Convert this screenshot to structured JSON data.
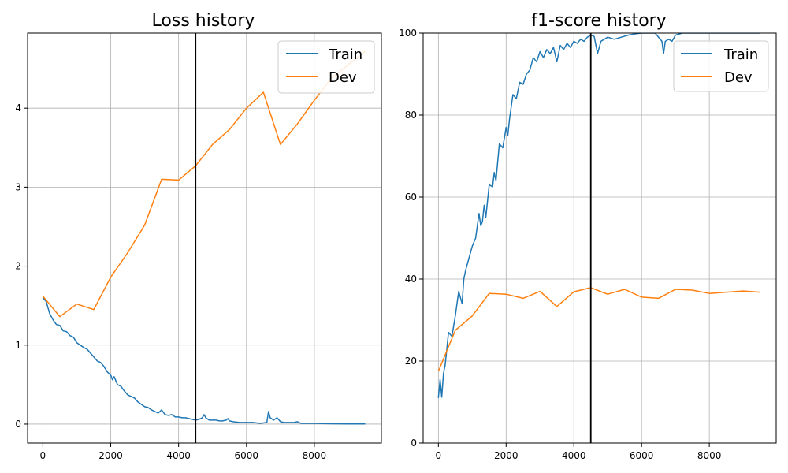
{
  "chart_data": [
    {
      "type": "line",
      "title": "Loss history",
      "xlabel": "",
      "ylabel": "",
      "xlim": [
        -450,
        9975
      ],
      "ylim": [
        -0.24,
        4.95
      ],
      "xticks": [
        0,
        2000,
        4000,
        6000,
        8000
      ],
      "yticks": [
        0,
        1,
        2,
        3,
        4
      ],
      "grid": true,
      "legend": "top-right",
      "vline_x": 4500,
      "vline_color": "#000000",
      "series": [
        {
          "name": "Train",
          "color": "#1f77b4",
          "x": [
            0,
            100,
            200,
            300,
            400,
            500,
            600,
            700,
            800,
            900,
            1000,
            1100,
            1200,
            1300,
            1400,
            1500,
            1600,
            1700,
            1800,
            1900,
            2000,
            2050,
            2100,
            2200,
            2300,
            2400,
            2500,
            2600,
            2700,
            2800,
            2900,
            3000,
            3100,
            3200,
            3300,
            3400,
            3500,
            3600,
            3700,
            3800,
            3900,
            4000,
            4100,
            4200,
            4300,
            4400,
            4500,
            4600,
            4700,
            4750,
            4800,
            4900,
            5000,
            5100,
            5200,
            5300,
            5400,
            5450,
            5500,
            5600,
            5800,
            6000,
            6200,
            6400,
            6600,
            6650,
            6700,
            6800,
            6900,
            7000,
            7100,
            7200,
            7400,
            7500,
            7600,
            7800,
            8000,
            8500,
            9000,
            9500
          ],
          "values": [
            1.6,
            1.55,
            1.4,
            1.32,
            1.26,
            1.25,
            1.18,
            1.17,
            1.12,
            1.1,
            1.03,
            1.0,
            0.97,
            0.95,
            0.9,
            0.85,
            0.8,
            0.78,
            0.73,
            0.66,
            0.62,
            0.56,
            0.6,
            0.5,
            0.48,
            0.42,
            0.37,
            0.35,
            0.33,
            0.28,
            0.25,
            0.22,
            0.21,
            0.18,
            0.16,
            0.14,
            0.18,
            0.12,
            0.11,
            0.12,
            0.09,
            0.09,
            0.08,
            0.08,
            0.07,
            0.06,
            0.05,
            0.06,
            0.08,
            0.12,
            0.08,
            0.05,
            0.05,
            0.05,
            0.04,
            0.04,
            0.05,
            0.07,
            0.04,
            0.03,
            0.02,
            0.02,
            0.02,
            0.01,
            0.02,
            0.16,
            0.08,
            0.05,
            0.08,
            0.03,
            0.02,
            0.02,
            0.02,
            0.03,
            0.01,
            0.01,
            0.01,
            0.005,
            0.003,
            0.002
          ]
        },
        {
          "name": "Dev",
          "color": "#ff7f0e",
          "x": [
            0,
            500,
            1000,
            1500,
            2000,
            2500,
            3000,
            3500,
            4000,
            4500,
            5000,
            5500,
            6000,
            6500,
            7000,
            7500,
            8000,
            8500,
            9000,
            9500
          ],
          "values": [
            1.62,
            1.36,
            1.52,
            1.45,
            1.86,
            2.17,
            2.52,
            3.1,
            3.09,
            3.27,
            3.54,
            3.73,
            4.0,
            4.2,
            3.54,
            3.8,
            4.1,
            4.38,
            4.55,
            4.72
          ]
        }
      ]
    },
    {
      "type": "line",
      "title": "f1-score history",
      "xlabel": "",
      "ylabel": "",
      "xlim": [
        -450,
        9975
      ],
      "ylim": [
        0,
        100
      ],
      "xticks": [
        0,
        2000,
        4000,
        6000,
        8000
      ],
      "yticks": [
        0,
        20,
        40,
        60,
        80,
        100
      ],
      "grid": true,
      "legend": "top-right",
      "vline_x": 4500,
      "vline_color": "#000000",
      "series": [
        {
          "name": "Train",
          "color": "#1f77b4",
          "x": [
            0,
            50,
            100,
            150,
            200,
            300,
            400,
            500,
            600,
            700,
            750,
            800,
            900,
            1000,
            1100,
            1200,
            1250,
            1300,
            1350,
            1400,
            1500,
            1600,
            1650,
            1700,
            1800,
            1900,
            2000,
            2050,
            2100,
            2200,
            2300,
            2400,
            2500,
            2600,
            2700,
            2800,
            2900,
            3000,
            3100,
            3200,
            3300,
            3400,
            3500,
            3600,
            3700,
            3800,
            3900,
            4000,
            4100,
            4200,
            4300,
            4400,
            4500,
            4600,
            4700,
            4800,
            5000,
            5200,
            5400,
            5600,
            5800,
            6000,
            6200,
            6400,
            6600,
            6650,
            6700,
            6800,
            6900,
            7000,
            7200,
            7500,
            8000,
            8500,
            9000,
            9500
          ],
          "values": [
            11,
            15.5,
            11.2,
            17,
            19,
            27,
            26,
            31,
            37,
            34,
            40,
            42,
            45,
            48,
            50,
            56,
            53,
            54,
            58,
            55,
            63,
            62.5,
            66,
            64,
            73,
            72,
            77,
            75,
            79,
            85,
            84,
            88,
            87.5,
            90,
            91,
            94,
            93,
            95.5,
            94,
            96,
            95,
            96.5,
            93,
            97,
            96,
            97.5,
            96.5,
            98,
            97.5,
            98.5,
            98,
            99,
            99.5,
            99.2,
            95,
            98,
            99,
            98.5,
            99,
            99.5,
            99.8,
            100,
            100,
            100,
            98,
            95,
            98,
            98.5,
            98,
            99.5,
            100,
            100,
            100,
            100,
            100,
            100
          ]
        },
        {
          "name": "Dev",
          "color": "#ff7f0e",
          "x": [
            0,
            500,
            1000,
            1500,
            2000,
            2500,
            3000,
            3500,
            4000,
            4500,
            5000,
            5500,
            6000,
            6500,
            7000,
            7500,
            8000,
            8500,
            9000,
            9500
          ],
          "values": [
            17.5,
            27.5,
            31,
            36.5,
            36.3,
            35.3,
            37,
            33.3,
            36.9,
            37.9,
            36.3,
            37.5,
            35.6,
            35.3,
            37.5,
            37.3,
            36.5,
            36.8,
            37.1,
            36.8
          ]
        }
      ]
    }
  ]
}
